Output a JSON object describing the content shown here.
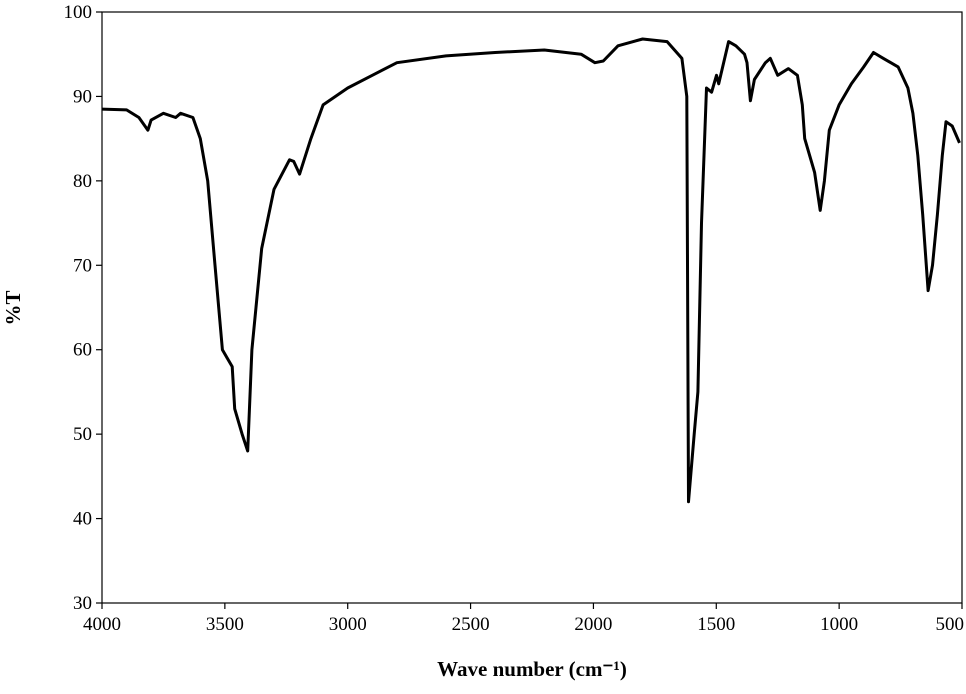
{
  "chart_data": {
    "type": "line",
    "xlabel": "Wave number (cm⁻¹)",
    "ylabel": "%T",
    "xlim": [
      4000,
      500
    ],
    "ylim": [
      30,
      100
    ],
    "xticks": [
      4000,
      3500,
      3000,
      2500,
      2000,
      1500,
      1000,
      500
    ],
    "yticks": [
      30,
      40,
      50,
      60,
      70,
      80,
      90,
      100
    ],
    "grid": false,
    "series": [
      {
        "color": "#000000",
        "x": [
          4000,
          3900,
          3850,
          3813,
          3800,
          3750,
          3700,
          3680,
          3630,
          3600,
          3570,
          3540,
          3510,
          3490,
          3470,
          3460,
          3430,
          3407,
          3390,
          3350,
          3300,
          3237,
          3220,
          3196,
          3150,
          3100,
          3000,
          2900,
          2800,
          2600,
          2400,
          2200,
          2050,
          1994,
          1960,
          1900,
          1800,
          1700,
          1640,
          1620,
          1613,
          1590,
          1575,
          1560,
          1540,
          1519,
          1499,
          1490,
          1450,
          1420,
          1385,
          1375,
          1361,
          1345,
          1300,
          1280,
          1250,
          1207,
          1170,
          1150,
          1140,
          1100,
          1077,
          1060,
          1040,
          1000,
          950,
          900,
          860,
          820,
          760,
          720,
          700,
          680,
          660,
          638,
          620,
          600,
          580,
          565,
          540,
          510
        ],
        "values": [
          88.5,
          88.4,
          87.5,
          86,
          87.2,
          88,
          87.5,
          88,
          87.5,
          85,
          80,
          70,
          60,
          59,
          58,
          53,
          50,
          48,
          60,
          72,
          79,
          82.5,
          82.3,
          80.8,
          85,
          89,
          91,
          92.5,
          94,
          94.8,
          95.2,
          95.5,
          95,
          94,
          94.2,
          96,
          96.8,
          96.5,
          94.5,
          90,
          42,
          50,
          55,
          75,
          91,
          90.5,
          92.5,
          91.5,
          96.5,
          96,
          95,
          94,
          89.5,
          92,
          94,
          94.5,
          92.5,
          93.3,
          92.5,
          89,
          85,
          81,
          76.5,
          80,
          86,
          89,
          91.5,
          93.5,
          95.2,
          94.5,
          93.5,
          91,
          88,
          83,
          76,
          67,
          70,
          76,
          83,
          87,
          86.5,
          84.5
        ]
      }
    ]
  }
}
